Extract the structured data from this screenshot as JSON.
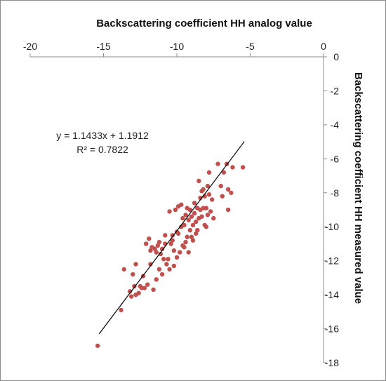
{
  "chart_data": {
    "type": "scatter",
    "xlabel": "Backscattering coefficient HH analog value",
    "ylabel": "Backscattering coefficient HH measured value",
    "xlim": [
      -20,
      0
    ],
    "ylim": [
      -18,
      0
    ],
    "x_ticks": [
      -20,
      -15,
      -10,
      -5,
      0
    ],
    "y_ticks": [
      0,
      -2,
      -4,
      -6,
      -8,
      -10,
      -12,
      -14,
      -16,
      -18
    ],
    "x_axis_position": "top",
    "y_axis_position": "right",
    "grid": false,
    "marker_color": "#c0504d",
    "trendline": {
      "slope": 1.1433,
      "intercept": 1.1912,
      "x_range": [
        -15.3,
        -5.4
      ],
      "color": "#000000",
      "equation": "y = 1.1433x + 1.1912",
      "r_squared": "R² = 0.7822"
    },
    "points": [
      [
        -15.4,
        -17.0
      ],
      [
        -13.8,
        -14.9
      ],
      [
        -13.6,
        -12.5
      ],
      [
        -13.2,
        -13.8
      ],
      [
        -13.1,
        -14.1
      ],
      [
        -13.0,
        -12.8
      ],
      [
        -12.9,
        -13.5
      ],
      [
        -12.8,
        -14.0
      ],
      [
        -12.8,
        -12.2
      ],
      [
        -12.6,
        -13.9
      ],
      [
        -12.5,
        -13.5
      ],
      [
        -12.4,
        -13.6
      ],
      [
        -12.3,
        -12.9
      ],
      [
        -12.2,
        -13.6
      ],
      [
        -12.1,
        -11.0
      ],
      [
        -12.0,
        -13.4
      ],
      [
        -11.9,
        -10.7
      ],
      [
        -11.8,
        -11.4
      ],
      [
        -11.8,
        -12.2
      ],
      [
        -11.7,
        -11.2
      ],
      [
        -11.6,
        -13.7
      ],
      [
        -11.5,
        -11.3
      ],
      [
        -11.4,
        -11.5
      ],
      [
        -11.4,
        -13.1
      ],
      [
        -11.3,
        -11.1
      ],
      [
        -11.2,
        -10.9
      ],
      [
        -11.2,
        -12.5
      ],
      [
        -11.1,
        -11.6
      ],
      [
        -11.0,
        -11.3
      ],
      [
        -11.0,
        -12.8
      ],
      [
        -10.9,
        -11.9
      ],
      [
        -10.8,
        -10.5
      ],
      [
        -10.8,
        -11.0
      ],
      [
        -10.7,
        -12.2
      ],
      [
        -10.6,
        -11.9
      ],
      [
        -10.5,
        -9.1
      ],
      [
        -10.5,
        -12.5
      ],
      [
        -10.4,
        -11.0
      ],
      [
        -10.3,
        -10.5
      ],
      [
        -10.3,
        -10.8
      ],
      [
        -10.2,
        -11.4
      ],
      [
        -10.2,
        -12.3
      ],
      [
        -10.1,
        -9.0
      ],
      [
        -10.0,
        -10.3
      ],
      [
        -10.0,
        -11.8
      ],
      [
        -9.9,
        -8.8
      ],
      [
        -9.9,
        -10.4
      ],
      [
        -9.8,
        -11.5
      ],
      [
        -9.7,
        -8.7
      ],
      [
        -9.7,
        -10.0
      ],
      [
        -9.6,
        -11.1
      ],
      [
        -9.6,
        -9.5
      ],
      [
        -9.5,
        -9.9
      ],
      [
        -9.5,
        -11.2
      ],
      [
        -9.4,
        -9.3
      ],
      [
        -9.4,
        -10.9
      ],
      [
        -9.3,
        -8.9
      ],
      [
        -9.3,
        -10.6
      ],
      [
        -9.2,
        -9.6
      ],
      [
        -9.2,
        -11.5
      ],
      [
        -9.1,
        -9.0
      ],
      [
        -9.1,
        -10.2
      ],
      [
        -9.0,
        -10.6
      ],
      [
        -9.0,
        -9.4
      ],
      [
        -8.9,
        -9.9
      ],
      [
        -8.9,
        -10.8
      ],
      [
        -8.8,
        -8.6
      ],
      [
        -8.8,
        -9.2
      ],
      [
        -8.7,
        -9.7
      ],
      [
        -8.7,
        -10.4
      ],
      [
        -8.6,
        -8.9
      ],
      [
        -8.6,
        -10.2
      ],
      [
        -8.5,
        -7.3
      ],
      [
        -8.5,
        -9.5
      ],
      [
        -8.4,
        -8.3
      ],
      [
        -8.4,
        -9.0
      ],
      [
        -8.3,
        -7.9
      ],
      [
        -8.3,
        -9.4
      ],
      [
        -8.2,
        -7.8
      ],
      [
        -8.2,
        -8.9
      ],
      [
        -8.1,
        -8.2
      ],
      [
        -8.1,
        -9.9
      ],
      [
        -8.0,
        -8.9
      ],
      [
        -8.0,
        -10.0
      ],
      [
        -7.9,
        -9.3
      ],
      [
        -7.9,
        -7.6
      ],
      [
        -7.8,
        -6.8
      ],
      [
        -7.8,
        -8.1
      ],
      [
        -7.7,
        -9.1
      ],
      [
        -7.6,
        -8.4
      ],
      [
        -7.5,
        -9.5
      ],
      [
        -7.2,
        -6.3
      ],
      [
        -7.0,
        -7.6
      ],
      [
        -6.9,
        -8.2
      ],
      [
        -6.8,
        -6.8
      ],
      [
        -6.6,
        -6.3
      ],
      [
        -6.5,
        -7.8
      ],
      [
        -6.5,
        -9.0
      ],
      [
        -6.3,
        -8.0
      ],
      [
        -6.2,
        -6.5
      ],
      [
        -5.5,
        -6.5
      ]
    ]
  }
}
